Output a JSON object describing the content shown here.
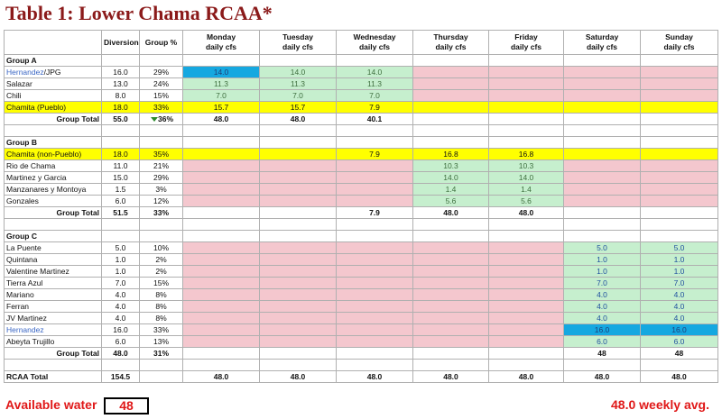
{
  "title": "Table 1: Lower Chama RCAA*",
  "headers": {
    "diversion": "Diversion",
    "group_pct": "Group %",
    "days": [
      {
        "day": "Monday",
        "sub": "daily cfs"
      },
      {
        "day": "Tuesday",
        "sub": "daily cfs"
      },
      {
        "day": "Wednesday",
        "sub": "daily cfs"
      },
      {
        "day": "Thursday",
        "sub": "daily cfs"
      },
      {
        "day": "Friday",
        "sub": "daily cfs"
      },
      {
        "day": "Saturday",
        "sub": "daily cfs"
      },
      {
        "day": "Sunday",
        "sub": "daily cfs"
      }
    ]
  },
  "group_a": {
    "label": "Group A",
    "rows": [
      {
        "name": "Hernandez",
        "name_suffix": "/JPG",
        "div": "16.0",
        "pct": "29%",
        "mon": "14.0",
        "tue": "14.0",
        "wed": "14.0"
      },
      {
        "name": "Salazar",
        "div": "13.0",
        "pct": "24%",
        "mon": "11.3",
        "tue": "11.3",
        "wed": "11.3"
      },
      {
        "name": "Chili",
        "div": "8.0",
        "pct": "15%",
        "mon": "7.0",
        "tue": "7.0",
        "wed": "7.0"
      },
      {
        "name": "Chamita (Pueblo)",
        "div": "18.0",
        "pct": "33%",
        "mon": "15.7",
        "tue": "15.7",
        "wed": "7.9"
      }
    ],
    "total": {
      "label": "Group Total",
      "div": "55.0",
      "pct": "36%",
      "mon": "48.0",
      "tue": "48.0",
      "wed": "40.1"
    }
  },
  "group_b": {
    "label": "Group B",
    "rows": [
      {
        "name": "Chamita (non-Pueblo)",
        "div": "18.0",
        "pct": "35%",
        "wed": "7.9",
        "thu": "16.8",
        "fri": "16.8"
      },
      {
        "name": "Rio de Chama",
        "div": "11.0",
        "pct": "21%",
        "thu": "10.3",
        "fri": "10.3"
      },
      {
        "name": "Martinez y Garcia",
        "div": "15.0",
        "pct": "29%",
        "thu": "14.0",
        "fri": "14.0"
      },
      {
        "name": "Manzanares y Montoya",
        "div": "1.5",
        "pct": "3%",
        "thu": "1.4",
        "fri": "1.4"
      },
      {
        "name": "Gonzales",
        "div": "6.0",
        "pct": "12%",
        "thu": "5.6",
        "fri": "5.6"
      }
    ],
    "total": {
      "label": "Group Total",
      "div": "51.5",
      "pct": "33%",
      "wed": "7.9",
      "thu": "48.0",
      "fri": "48.0"
    }
  },
  "group_c": {
    "label": "Group C",
    "rows": [
      {
        "name": "La Puente",
        "div": "5.0",
        "pct": "10%",
        "sat": "5.0",
        "sun": "5.0"
      },
      {
        "name": "Quintana",
        "div": "1.0",
        "pct": "2%",
        "sat": "1.0",
        "sun": "1.0"
      },
      {
        "name": "Valentine Martinez",
        "div": "1.0",
        "pct": "2%",
        "sat": "1.0",
        "sun": "1.0"
      },
      {
        "name": "Tierra Azul",
        "div": "7.0",
        "pct": "15%",
        "sat": "7.0",
        "sun": "7.0"
      },
      {
        "name": "Mariano",
        "div": "4.0",
        "pct": "8%",
        "sat": "4.0",
        "sun": "4.0"
      },
      {
        "name": "Ferran",
        "div": "4.0",
        "pct": "8%",
        "sat": "4.0",
        "sun": "4.0"
      },
      {
        "name": "JV Martinez",
        "div": "4.0",
        "pct": "8%",
        "sat": "4.0",
        "sun": "4.0"
      },
      {
        "name": "Hernandez",
        "div": "16.0",
        "pct": "33%",
        "sat": "16.0",
        "sun": "16.0"
      },
      {
        "name": "Abeyta Trujillo",
        "div": "6.0",
        "pct": "13%",
        "sat": "6.0",
        "sun": "6.0"
      }
    ],
    "total": {
      "label": "Group Total",
      "div": "48.0",
      "pct": "31%",
      "sat": "48",
      "sun": "48"
    }
  },
  "rcaa_total": {
    "label": "RCAA Total",
    "div": "154.5",
    "mon": "48.0",
    "tue": "48.0",
    "wed": "48.0",
    "thu": "48.0",
    "fri": "48.0",
    "sat": "48.0",
    "sun": "48.0"
  },
  "footer": {
    "available_label": "Available water",
    "available_value": "48",
    "weekly_avg": "48.0 weekly avg."
  },
  "colors": {
    "title": "#8b1a1a",
    "pink": "#f4c7ce",
    "green": "#c6efce",
    "blue": "#15a8e0",
    "yellow": "#ffff00",
    "footer_red": "#e01818"
  }
}
